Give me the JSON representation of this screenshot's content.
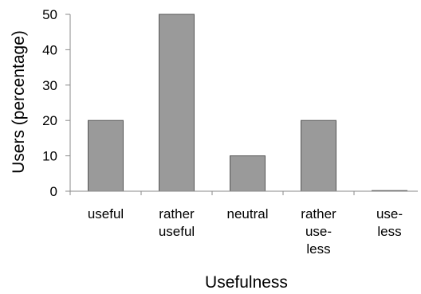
{
  "chart_data": {
    "type": "bar",
    "title": "",
    "xlabel": "Usefulness",
    "ylabel": "Users (percentage)",
    "ylim": [
      0,
      50
    ],
    "yticks": [
      0,
      10,
      20,
      30,
      40,
      50
    ],
    "grid": false,
    "legend": "none",
    "bar_color": "#9a9a9a",
    "categories": [
      [
        "useful"
      ],
      [
        "rather",
        "useful"
      ],
      [
        "neutral"
      ],
      [
        "rather",
        "use-",
        "less"
      ],
      [
        "use-",
        "less"
      ]
    ],
    "values": [
      20,
      50,
      10,
      20,
      0
    ]
  }
}
